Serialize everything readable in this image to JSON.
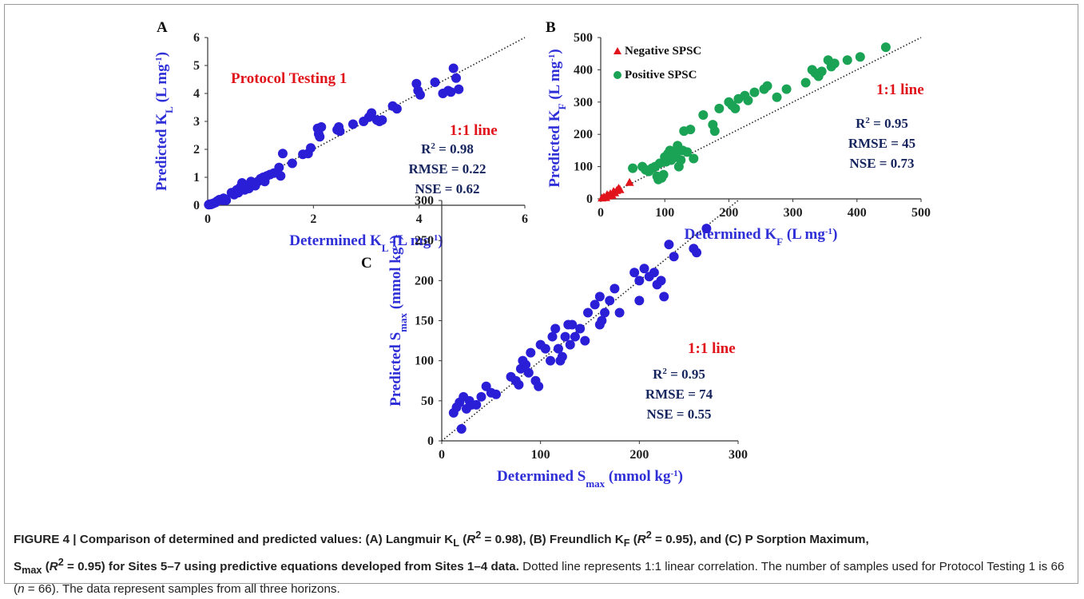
{
  "colors": {
    "points_blue": "#2a1fd6",
    "points_green": "#1aa255",
    "points_red": "#e0141a",
    "axis_title_blue": "#2f2fd8",
    "stats_navy": "#16245e",
    "annotation_red": "#e0141a"
  },
  "chart_data": [
    {
      "id": "A",
      "type": "scatter",
      "panel_label": "A",
      "title": "Protocol Testing 1",
      "xlabel": "Determined K",
      "xlabel_sub": "L",
      "xlabel_unit": "(L mg",
      "ylabel": "Predicted K",
      "ylabel_sub": "L",
      "ylabel_unit": "(L mg",
      "xlim": [
        0,
        6
      ],
      "ylim": [
        0,
        6
      ],
      "xticks": [
        0,
        2,
        4,
        6
      ],
      "yticks": [
        0,
        1,
        2,
        3,
        4,
        5,
        6
      ],
      "one_to_one_label": "1:1 line",
      "stats": [
        "0.98",
        "RMSE = 0.22",
        "NSE = 0.62"
      ],
      "series": [
        {
          "marker": "circle",
          "color": "#2a1fd6",
          "points": [
            [
              0.02,
              0.02
            ],
            [
              0.04,
              0.04
            ],
            [
              0.06,
              0.03
            ],
            [
              0.08,
              0.05
            ],
            [
              0.1,
              0.06
            ],
            [
              0.12,
              0.08
            ],
            [
              0.15,
              0.1
            ],
            [
              0.18,
              0.15
            ],
            [
              0.22,
              0.2
            ],
            [
              0.28,
              0.18
            ],
            [
              0.32,
              0.22
            ],
            [
              0.35,
              0.18
            ],
            [
              0.45,
              0.45
            ],
            [
              0.5,
              0.38
            ],
            [
              0.55,
              0.55
            ],
            [
              0.58,
              0.45
            ],
            [
              0.62,
              0.65
            ],
            [
              0.65,
              0.8
            ],
            [
              0.7,
              0.55
            ],
            [
              0.75,
              0.7
            ],
            [
              0.78,
              0.6
            ],
            [
              0.82,
              0.85
            ],
            [
              0.85,
              0.75
            ],
            [
              0.9,
              0.7
            ],
            [
              0.95,
              0.85
            ],
            [
              1.0,
              0.95
            ],
            [
              1.05,
              1.0
            ],
            [
              1.08,
              0.85
            ],
            [
              1.12,
              1.05
            ],
            [
              1.18,
              1.1
            ],
            [
              1.25,
              1.15
            ],
            [
              1.35,
              1.35
            ],
            [
              1.38,
              1.05
            ],
            [
              1.42,
              1.85
            ],
            [
              1.8,
              1.82
            ],
            [
              1.9,
              1.85
            ],
            [
              1.95,
              2.05
            ],
            [
              2.08,
              2.75
            ],
            [
              2.1,
              2.55
            ],
            [
              2.12,
              2.45
            ],
            [
              2.15,
              2.8
            ],
            [
              2.45,
              2.7
            ],
            [
              2.48,
              2.8
            ],
            [
              2.5,
              2.65
            ],
            [
              2.75,
              2.9
            ],
            [
              2.95,
              3.0
            ],
            [
              3.05,
              3.15
            ],
            [
              3.1,
              3.3
            ],
            [
              3.2,
              3.05
            ],
            [
              3.25,
              3.0
            ],
            [
              3.3,
              3.05
            ],
            [
              3.5,
              3.55
            ],
            [
              3.58,
              3.45
            ],
            [
              3.95,
              4.35
            ],
            [
              3.98,
              4.1
            ],
            [
              4.02,
              3.95
            ],
            [
              4.3,
              4.4
            ],
            [
              4.45,
              4.0
            ],
            [
              4.55,
              4.1
            ],
            [
              4.6,
              4.05
            ],
            [
              4.65,
              4.9
            ],
            [
              4.7,
              4.55
            ],
            [
              4.75,
              4.15
            ],
            [
              0.7,
              0.72
            ],
            [
              1.6,
              1.5
            ],
            [
              0.3,
              0.25
            ]
          ]
        }
      ]
    },
    {
      "id": "B",
      "type": "scatter",
      "panel_label": "B",
      "xlabel": "Determined K",
      "xlabel_sub": "F",
      "xlabel_unit": "(L mg",
      "ylabel": "Predicted K",
      "ylabel_sub": "F",
      "ylabel_unit": "(L mg",
      "xlim": [
        0,
        500
      ],
      "ylim": [
        0,
        500
      ],
      "xticks": [
        0,
        100,
        200,
        300,
        400,
        500
      ],
      "yticks": [
        0,
        100,
        200,
        300,
        400,
        500
      ],
      "one_to_one_label": "1:1 line",
      "stats": [
        "0.95",
        "RMSE = 45",
        "NSE = 0.73"
      ],
      "series": [
        {
          "name": "Negative SPSC",
          "marker": "triangle",
          "color": "#e0141a",
          "points": [
            [
              2,
              2
            ],
            [
              5,
              5
            ],
            [
              8,
              3
            ],
            [
              10,
              12
            ],
            [
              12,
              8
            ],
            [
              15,
              15
            ],
            [
              18,
              10
            ],
            [
              20,
              22
            ],
            [
              22,
              18
            ],
            [
              25,
              25
            ],
            [
              28,
              32
            ],
            [
              30,
              28
            ],
            [
              45,
              50
            ]
          ]
        },
        {
          "name": "Positive SPSC",
          "marker": "circle",
          "color": "#1aa255",
          "points": [
            [
              50,
              95
            ],
            [
              65,
              100
            ],
            [
              70,
              90
            ],
            [
              75,
              85
            ],
            [
              80,
              95
            ],
            [
              85,
              100
            ],
            [
              88,
              70
            ],
            [
              90,
              60
            ],
            [
              92,
              110
            ],
            [
              95,
              65
            ],
            [
              98,
              75
            ],
            [
              100,
              130
            ],
            [
              102,
              115
            ],
            [
              105,
              140
            ],
            [
              108,
              150
            ],
            [
              110,
              120
            ],
            [
              115,
              145
            ],
            [
              118,
              130
            ],
            [
              120,
              165
            ],
            [
              122,
              100
            ],
            [
              125,
              120
            ],
            [
              128,
              150
            ],
            [
              130,
              210
            ],
            [
              135,
              145
            ],
            [
              140,
              215
            ],
            [
              145,
              125
            ],
            [
              160,
              260
            ],
            [
              175,
              230
            ],
            [
              178,
              210
            ],
            [
              185,
              280
            ],
            [
              200,
              300
            ],
            [
              205,
              290
            ],
            [
              210,
              280
            ],
            [
              215,
              310
            ],
            [
              225,
              320
            ],
            [
              230,
              305
            ],
            [
              240,
              330
            ],
            [
              255,
              340
            ],
            [
              260,
              350
            ],
            [
              275,
              315
            ],
            [
              290,
              340
            ],
            [
              320,
              360
            ],
            [
              330,
              400
            ],
            [
              335,
              390
            ],
            [
              340,
              380
            ],
            [
              345,
              395
            ],
            [
              355,
              430
            ],
            [
              360,
              410
            ],
            [
              365,
              420
            ],
            [
              385,
              430
            ],
            [
              405,
              440
            ],
            [
              445,
              470
            ]
          ]
        }
      ]
    },
    {
      "id": "C",
      "type": "scatter",
      "panel_label": "C",
      "xlabel": "Determined S",
      "xlabel_sub": "max",
      "xlabel_unit": "(mmol kg",
      "ylabel": "Predicted S",
      "ylabel_sub": "max",
      "ylabel_unit": "(mmol kg",
      "xlim": [
        0,
        300
      ],
      "ylim": [
        0,
        300
      ],
      "xticks": [
        0,
        100,
        200,
        300
      ],
      "yticks": [
        0,
        50,
        100,
        150,
        200,
        250,
        300
      ],
      "one_to_one_label": "1:1 line",
      "stats": [
        "0.95",
        "RMSE = 74",
        "NSE = 0.55"
      ],
      "series": [
        {
          "marker": "circle",
          "color": "#2a1fd6",
          "points": [
            [
              12,
              35
            ],
            [
              15,
              42
            ],
            [
              18,
              48
            ],
            [
              20,
              15
            ],
            [
              22,
              55
            ],
            [
              25,
              40
            ],
            [
              28,
              50
            ],
            [
              30,
              45
            ],
            [
              35,
              45
            ],
            [
              40,
              55
            ],
            [
              45,
              68
            ],
            [
              55,
              58
            ],
            [
              75,
              75
            ],
            [
              78,
              70
            ],
            [
              80,
              90
            ],
            [
              82,
              100
            ],
            [
              85,
              95
            ],
            [
              88,
              85
            ],
            [
              90,
              110
            ],
            [
              95,
              75
            ],
            [
              98,
              68
            ],
            [
              105,
              115
            ],
            [
              110,
              100
            ],
            [
              112,
              130
            ],
            [
              115,
              140
            ],
            [
              118,
              115
            ],
            [
              120,
              100
            ],
            [
              122,
              105
            ],
            [
              125,
              130
            ],
            [
              128,
              145
            ],
            [
              132,
              145
            ],
            [
              135,
              130
            ],
            [
              140,
              140
            ],
            [
              145,
              125
            ],
            [
              148,
              160
            ],
            [
              155,
              170
            ],
            [
              160,
              180
            ],
            [
              162,
              150
            ],
            [
              165,
              160
            ],
            [
              170,
              175
            ],
            [
              175,
              190
            ],
            [
              180,
              160
            ],
            [
              195,
              210
            ],
            [
              200,
              200
            ],
            [
              205,
              215
            ],
            [
              210,
              205
            ],
            [
              215,
              210
            ],
            [
              218,
              195
            ],
            [
              222,
              200
            ],
            [
              225,
              180
            ],
            [
              230,
              245
            ],
            [
              235,
              230
            ],
            [
              255,
              240
            ],
            [
              258,
              235
            ],
            [
              268,
              265
            ],
            [
              200,
              175
            ],
            [
              160,
              145
            ],
            [
              130,
              120
            ],
            [
              100,
              120
            ],
            [
              70,
              80
            ],
            [
              50,
              60
            ]
          ]
        }
      ]
    }
  ],
  "caption": {
    "figure_label": "FIGURE 4 | ",
    "bold_a": "Comparison of determined and predicted values: (A) Langmuir K",
    "bold_a_sub": "L",
    "bold_b": " (",
    "r2_italic": "R",
    "r2_sup": "2",
    "bold_c": " = 0.98), (B) Freundlich K",
    "bold_c_sub": "F",
    "bold_d": " (",
    "bold_e": " = 0.95), and (C) P Sorption Maximum,",
    "bold_f": "S",
    "bold_f_sub": "max",
    "bold_g": " (",
    "bold_h": " = 0.95) for Sites 5–7 using predictive equations developed from Sites 1–4 data.",
    "normal_a": " Dotted line represents 1:1 linear correlation. The number of samples used for Protocol Testing 1 is 66 (",
    "n_italic": "n",
    "normal_b": " = 66). The data represent samples from all three horizons."
  }
}
